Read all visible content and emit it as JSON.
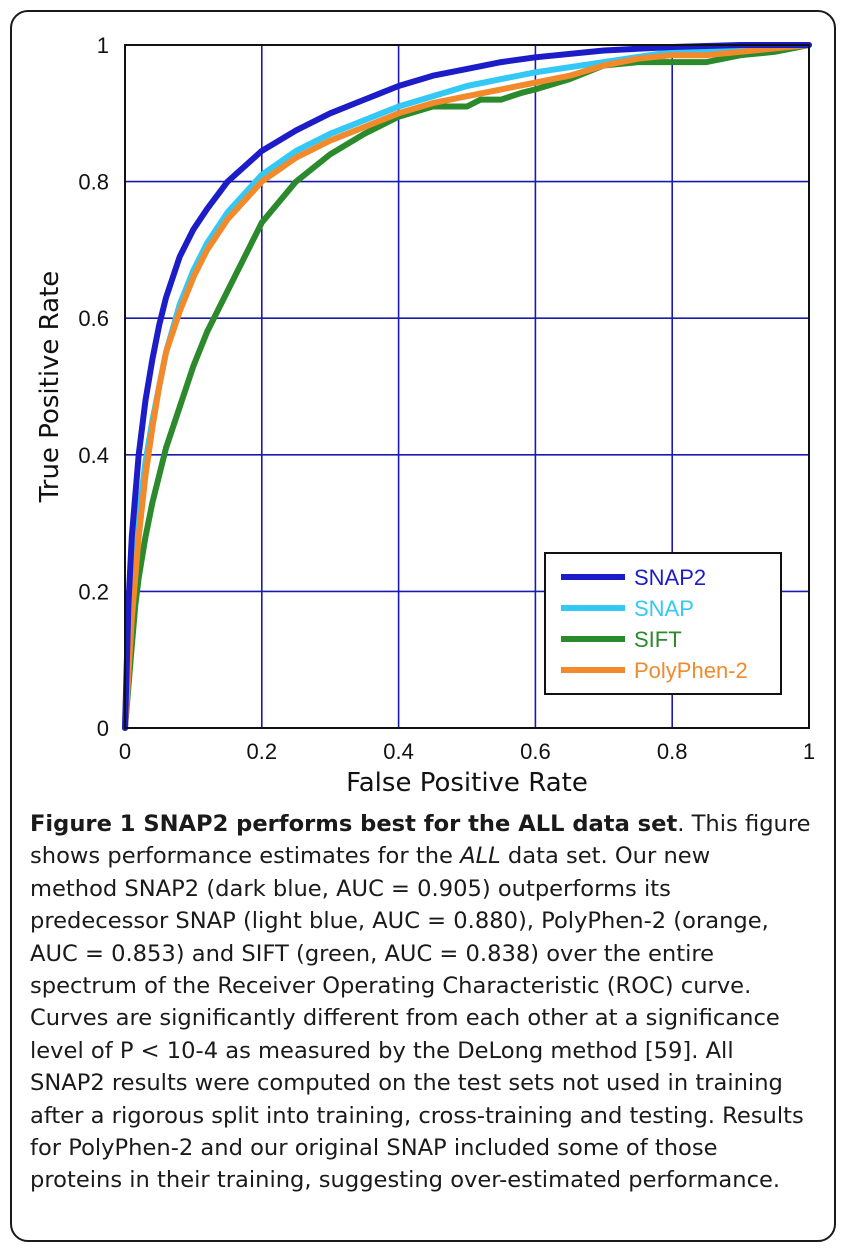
{
  "chart_data": {
    "type": "line",
    "xlabel": "False Positive Rate",
    "ylabel": "True Positive Rate",
    "xlim": [
      0,
      1
    ],
    "ylim": [
      0,
      1
    ],
    "x_ticks": [
      "0",
      "0.2",
      "0.4",
      "0.6",
      "0.8",
      "1"
    ],
    "y_ticks": [
      "0",
      "0.2",
      "0.4",
      "0.6",
      "0.8",
      "1"
    ],
    "grid": true,
    "grid_color": "#1a1ab0",
    "legend_position": "bottom-right",
    "series": [
      {
        "name": "SNAP2",
        "color": "#1c1cc8",
        "x": [
          0,
          0.005,
          0.01,
          0.02,
          0.03,
          0.04,
          0.05,
          0.06,
          0.08,
          0.1,
          0.12,
          0.15,
          0.2,
          0.25,
          0.3,
          0.35,
          0.4,
          0.45,
          0.5,
          0.55,
          0.6,
          0.7,
          0.8,
          0.9,
          1.0
        ],
        "y": [
          0,
          0.18,
          0.28,
          0.4,
          0.48,
          0.54,
          0.59,
          0.63,
          0.69,
          0.73,
          0.76,
          0.8,
          0.845,
          0.875,
          0.9,
          0.92,
          0.94,
          0.955,
          0.965,
          0.975,
          0.982,
          0.992,
          0.997,
          1.0,
          1.0
        ]
      },
      {
        "name": "SNAP",
        "color": "#33c8f5",
        "x": [
          0,
          0.005,
          0.01,
          0.02,
          0.03,
          0.04,
          0.05,
          0.06,
          0.08,
          0.1,
          0.12,
          0.15,
          0.2,
          0.25,
          0.3,
          0.35,
          0.4,
          0.45,
          0.5,
          0.55,
          0.6,
          0.7,
          0.8,
          0.9,
          1.0
        ],
        "y": [
          0,
          0.12,
          0.2,
          0.31,
          0.39,
          0.45,
          0.5,
          0.55,
          0.62,
          0.67,
          0.71,
          0.755,
          0.81,
          0.845,
          0.87,
          0.89,
          0.91,
          0.925,
          0.94,
          0.95,
          0.96,
          0.975,
          0.99,
          0.995,
          1.0
        ]
      },
      {
        "name": "SIFT",
        "color": "#2b8a2b",
        "x": [
          0,
          0.01,
          0.015,
          0.02,
          0.03,
          0.04,
          0.05,
          0.06,
          0.08,
          0.1,
          0.12,
          0.15,
          0.2,
          0.25,
          0.3,
          0.35,
          0.4,
          0.45,
          0.5,
          0.52,
          0.55,
          0.58,
          0.6,
          0.65,
          0.7,
          0.75,
          0.8,
          0.85,
          0.9,
          0.95,
          1.0
        ],
        "y": [
          0,
          0.12,
          0.18,
          0.22,
          0.28,
          0.33,
          0.37,
          0.41,
          0.47,
          0.53,
          0.58,
          0.64,
          0.74,
          0.8,
          0.84,
          0.87,
          0.895,
          0.91,
          0.91,
          0.92,
          0.92,
          0.93,
          0.935,
          0.95,
          0.97,
          0.975,
          0.975,
          0.975,
          0.985,
          0.99,
          1.0
        ]
      },
      {
        "name": "PolyPhen-2",
        "color": "#f28a2c",
        "x": [
          0,
          0.005,
          0.01,
          0.02,
          0.03,
          0.04,
          0.05,
          0.06,
          0.08,
          0.1,
          0.12,
          0.15,
          0.2,
          0.25,
          0.3,
          0.35,
          0.4,
          0.45,
          0.5,
          0.55,
          0.6,
          0.65,
          0.7,
          0.75,
          0.8,
          0.85,
          0.9,
          0.95,
          1.0
        ],
        "y": [
          0,
          0.08,
          0.16,
          0.28,
          0.37,
          0.44,
          0.5,
          0.55,
          0.61,
          0.66,
          0.7,
          0.745,
          0.8,
          0.835,
          0.86,
          0.88,
          0.9,
          0.915,
          0.925,
          0.935,
          0.945,
          0.955,
          0.97,
          0.98,
          0.985,
          0.985,
          0.99,
          0.995,
          1.0
        ]
      }
    ]
  },
  "caption": {
    "label": "Figure 1 SNAP2 performs best for the ALL data set",
    "lines": [
      {
        "pre": ". This figure",
        "italic": "",
        "post": ""
      },
      {
        "pre": "shows performance estimates for the ",
        "italic": "ALL",
        "post": " data set. Our new"
      },
      {
        "pre": "method SNAP2 (dark blue, AUC = 0.905) outperforms its",
        "italic": "",
        "post": ""
      },
      {
        "pre": "predecessor SNAP (light blue, AUC = 0.880), PolyPhen-2 (orange,",
        "italic": "",
        "post": ""
      },
      {
        "pre": "AUC = 0.853) and SIFT (green, AUC = 0.838) over the entire",
        "italic": "",
        "post": ""
      },
      {
        "pre": "spectrum of the Receiver Operating Characteristic (ROC) curve.",
        "italic": "",
        "post": ""
      },
      {
        "pre": "Curves are significantly different from each other at a significance",
        "italic": "",
        "post": ""
      },
      {
        "pre": "level of P < 10-4 as measured by the DeLong method [59]. All",
        "italic": "",
        "post": ""
      },
      {
        "pre": "SNAP2 results were computed on the test sets not used in training",
        "italic": "",
        "post": ""
      },
      {
        "pre": "after a rigorous split into training, cross-training and testing. Results",
        "italic": "",
        "post": ""
      },
      {
        "pre": "for PolyPhen-2 and our original SNAP included some of those",
        "italic": "",
        "post": ""
      },
      {
        "pre": "proteins in their training, suggesting over-estimated performance.",
        "italic": "",
        "post": ""
      }
    ]
  }
}
